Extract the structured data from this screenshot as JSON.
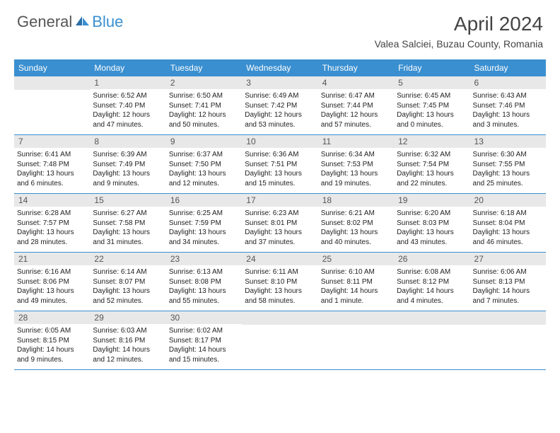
{
  "logo": {
    "general": "General",
    "blue": "Blue"
  },
  "title": "April 2024",
  "location": "Valea Salciei, Buzau County, Romania",
  "colors": {
    "accent": "#3a8fd0",
    "daynum_bg": "#e8e8e8",
    "text": "#444"
  },
  "day_headers": [
    "Sunday",
    "Monday",
    "Tuesday",
    "Wednesday",
    "Thursday",
    "Friday",
    "Saturday"
  ],
  "weeks": [
    [
      {
        "n": "",
        "sr": "",
        "ss": "",
        "dl": ""
      },
      {
        "n": "1",
        "sr": "Sunrise: 6:52 AM",
        "ss": "Sunset: 7:40 PM",
        "dl": "Daylight: 12 hours and 47 minutes."
      },
      {
        "n": "2",
        "sr": "Sunrise: 6:50 AM",
        "ss": "Sunset: 7:41 PM",
        "dl": "Daylight: 12 hours and 50 minutes."
      },
      {
        "n": "3",
        "sr": "Sunrise: 6:49 AM",
        "ss": "Sunset: 7:42 PM",
        "dl": "Daylight: 12 hours and 53 minutes."
      },
      {
        "n": "4",
        "sr": "Sunrise: 6:47 AM",
        "ss": "Sunset: 7:44 PM",
        "dl": "Daylight: 12 hours and 57 minutes."
      },
      {
        "n": "5",
        "sr": "Sunrise: 6:45 AM",
        "ss": "Sunset: 7:45 PM",
        "dl": "Daylight: 13 hours and 0 minutes."
      },
      {
        "n": "6",
        "sr": "Sunrise: 6:43 AM",
        "ss": "Sunset: 7:46 PM",
        "dl": "Daylight: 13 hours and 3 minutes."
      }
    ],
    [
      {
        "n": "7",
        "sr": "Sunrise: 6:41 AM",
        "ss": "Sunset: 7:48 PM",
        "dl": "Daylight: 13 hours and 6 minutes."
      },
      {
        "n": "8",
        "sr": "Sunrise: 6:39 AM",
        "ss": "Sunset: 7:49 PM",
        "dl": "Daylight: 13 hours and 9 minutes."
      },
      {
        "n": "9",
        "sr": "Sunrise: 6:37 AM",
        "ss": "Sunset: 7:50 PM",
        "dl": "Daylight: 13 hours and 12 minutes."
      },
      {
        "n": "10",
        "sr": "Sunrise: 6:36 AM",
        "ss": "Sunset: 7:51 PM",
        "dl": "Daylight: 13 hours and 15 minutes."
      },
      {
        "n": "11",
        "sr": "Sunrise: 6:34 AM",
        "ss": "Sunset: 7:53 PM",
        "dl": "Daylight: 13 hours and 19 minutes."
      },
      {
        "n": "12",
        "sr": "Sunrise: 6:32 AM",
        "ss": "Sunset: 7:54 PM",
        "dl": "Daylight: 13 hours and 22 minutes."
      },
      {
        "n": "13",
        "sr": "Sunrise: 6:30 AM",
        "ss": "Sunset: 7:55 PM",
        "dl": "Daylight: 13 hours and 25 minutes."
      }
    ],
    [
      {
        "n": "14",
        "sr": "Sunrise: 6:28 AM",
        "ss": "Sunset: 7:57 PM",
        "dl": "Daylight: 13 hours and 28 minutes."
      },
      {
        "n": "15",
        "sr": "Sunrise: 6:27 AM",
        "ss": "Sunset: 7:58 PM",
        "dl": "Daylight: 13 hours and 31 minutes."
      },
      {
        "n": "16",
        "sr": "Sunrise: 6:25 AM",
        "ss": "Sunset: 7:59 PM",
        "dl": "Daylight: 13 hours and 34 minutes."
      },
      {
        "n": "17",
        "sr": "Sunrise: 6:23 AM",
        "ss": "Sunset: 8:01 PM",
        "dl": "Daylight: 13 hours and 37 minutes."
      },
      {
        "n": "18",
        "sr": "Sunrise: 6:21 AM",
        "ss": "Sunset: 8:02 PM",
        "dl": "Daylight: 13 hours and 40 minutes."
      },
      {
        "n": "19",
        "sr": "Sunrise: 6:20 AM",
        "ss": "Sunset: 8:03 PM",
        "dl": "Daylight: 13 hours and 43 minutes."
      },
      {
        "n": "20",
        "sr": "Sunrise: 6:18 AM",
        "ss": "Sunset: 8:04 PM",
        "dl": "Daylight: 13 hours and 46 minutes."
      }
    ],
    [
      {
        "n": "21",
        "sr": "Sunrise: 6:16 AM",
        "ss": "Sunset: 8:06 PM",
        "dl": "Daylight: 13 hours and 49 minutes."
      },
      {
        "n": "22",
        "sr": "Sunrise: 6:14 AM",
        "ss": "Sunset: 8:07 PM",
        "dl": "Daylight: 13 hours and 52 minutes."
      },
      {
        "n": "23",
        "sr": "Sunrise: 6:13 AM",
        "ss": "Sunset: 8:08 PM",
        "dl": "Daylight: 13 hours and 55 minutes."
      },
      {
        "n": "24",
        "sr": "Sunrise: 6:11 AM",
        "ss": "Sunset: 8:10 PM",
        "dl": "Daylight: 13 hours and 58 minutes."
      },
      {
        "n": "25",
        "sr": "Sunrise: 6:10 AM",
        "ss": "Sunset: 8:11 PM",
        "dl": "Daylight: 14 hours and 1 minute."
      },
      {
        "n": "26",
        "sr": "Sunrise: 6:08 AM",
        "ss": "Sunset: 8:12 PM",
        "dl": "Daylight: 14 hours and 4 minutes."
      },
      {
        "n": "27",
        "sr": "Sunrise: 6:06 AM",
        "ss": "Sunset: 8:13 PM",
        "dl": "Daylight: 14 hours and 7 minutes."
      }
    ],
    [
      {
        "n": "28",
        "sr": "Sunrise: 6:05 AM",
        "ss": "Sunset: 8:15 PM",
        "dl": "Daylight: 14 hours and 9 minutes."
      },
      {
        "n": "29",
        "sr": "Sunrise: 6:03 AM",
        "ss": "Sunset: 8:16 PM",
        "dl": "Daylight: 14 hours and 12 minutes."
      },
      {
        "n": "30",
        "sr": "Sunrise: 6:02 AM",
        "ss": "Sunset: 8:17 PM",
        "dl": "Daylight: 14 hours and 15 minutes."
      },
      {
        "n": "",
        "sr": "",
        "ss": "",
        "dl": ""
      },
      {
        "n": "",
        "sr": "",
        "ss": "",
        "dl": ""
      },
      {
        "n": "",
        "sr": "",
        "ss": "",
        "dl": ""
      },
      {
        "n": "",
        "sr": "",
        "ss": "",
        "dl": ""
      }
    ]
  ]
}
